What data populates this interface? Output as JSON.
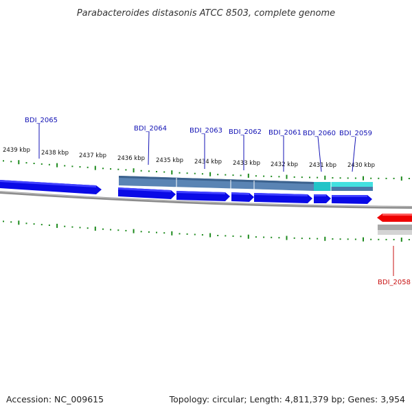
{
  "title": "Parabacteroides distasonis ATCC 8503, complete genome",
  "footer": {
    "accession": "Accession: NC_009615",
    "summary": "Topology: circular; Length: 4,811,379 bp; Genes: 3,954"
  },
  "colors": {
    "forward_gene": "#0a0ae6",
    "reverse_gene": "#ee0000",
    "cds_track_blue": "#5a84b4",
    "cds_track_cyan": "#3ad7d7",
    "backbone": "#8c8c8c",
    "ticks": "#1d8a1d",
    "label_forward": "#1010b4",
    "label_reverse": "#c81010"
  },
  "tick_labels": [
    "2439 kbp",
    "2438 kbp",
    "2437 kbp",
    "2436 kbp",
    "2435 kbp",
    "2434 kbp",
    "2433 kbp",
    "2432 kbp",
    "2431 kbp",
    "2430 kbp"
  ],
  "genes": [
    {
      "name": "BDI_2065",
      "strand": "+"
    },
    {
      "name": "BDI_2064",
      "strand": "+"
    },
    {
      "name": "BDI_2063",
      "strand": "+"
    },
    {
      "name": "BDI_2062",
      "strand": "+"
    },
    {
      "name": "BDI_2061",
      "strand": "+"
    },
    {
      "name": "BDI_2060",
      "strand": "+"
    },
    {
      "name": "BDI_2059",
      "strand": "+"
    },
    {
      "name": "BDI_2058",
      "strand": "-"
    }
  ]
}
